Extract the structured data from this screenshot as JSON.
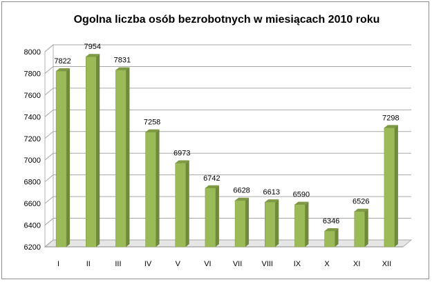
{
  "chart_data": {
    "type": "bar",
    "title": "Ogolna liczba osób bezrobotnych w miesiącach 2010 roku",
    "categories": [
      "I",
      "II",
      "III",
      "IV",
      "V",
      "VI",
      "VII",
      "VIII",
      "IX",
      "X",
      "XI",
      "XII"
    ],
    "values": [
      7822,
      7954,
      7831,
      7258,
      6973,
      6742,
      6628,
      6613,
      6590,
      6346,
      6526,
      7298
    ],
    "value_labels": [
      "7822",
      "7954",
      "7831",
      "7258",
      "6973",
      "6742",
      "6628",
      "6613",
      "6590",
      "6346",
      "6526",
      "7298"
    ],
    "ylim": [
      6200,
      8000
    ],
    "yticks": [
      "6200",
      "6400",
      "6600",
      "6800",
      "7000",
      "7200",
      "7400",
      "7600",
      "7800",
      "8000"
    ],
    "xlabel": "",
    "ylabel": "",
    "grid": true,
    "legend": "none",
    "bar_color": "#9bbb59",
    "bar_side_color": "#6f8a3a",
    "bar_top_color": "#7e9a44"
  }
}
